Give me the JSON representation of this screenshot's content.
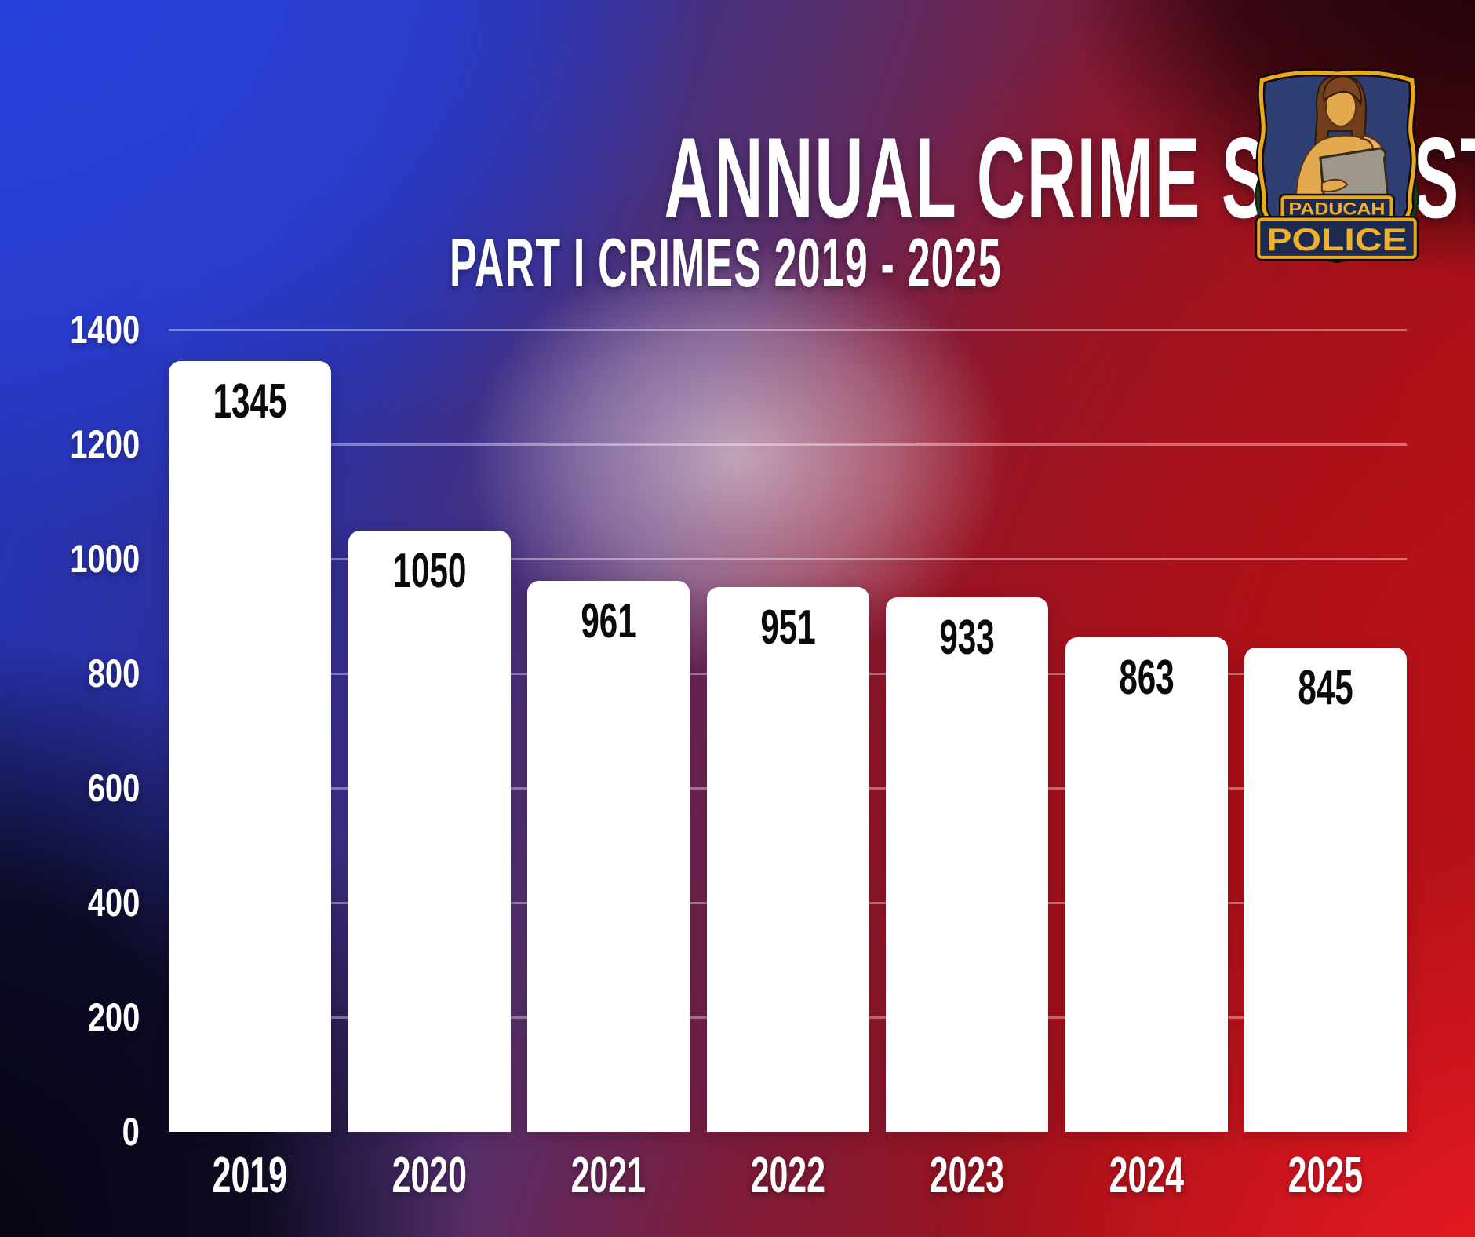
{
  "header": {
    "title": "ANNUAL CRIME STATISTICS",
    "subtitle": "PART I CRIMES 2019 - 2025"
  },
  "logo": {
    "description": "Paducah Police shield badge",
    "line1": "PADUCAH",
    "line2": "POLICE",
    "colors": {
      "gold": "#eca91d",
      "gold_text": "#f2b02a",
      "shield_field": "#2c3e72",
      "banner_field": "#1d2a50",
      "outline": "#0f0b04",
      "skin": "#e3a94f",
      "hair": "#6f3e1c",
      "tablet": "#a0978b",
      "leaves": "#1a3f1b"
    }
  },
  "chart_data": {
    "type": "bar",
    "title": "ANNUAL CRIME STATISTICS",
    "subtitle": "PART I CRIMES 2019 - 2025",
    "categories": [
      "2019",
      "2020",
      "2021",
      "2022",
      "2023",
      "2024",
      "2025"
    ],
    "values": [
      1345,
      1050,
      961,
      951,
      933,
      863,
      845
    ],
    "xlabel": "",
    "ylabel": "",
    "ylim": [
      0,
      1400
    ],
    "y_ticks": [
      0,
      200,
      400,
      600,
      800,
      1000,
      1200,
      1400
    ],
    "grid": true,
    "legend": false,
    "bar_color": "#ffffff",
    "value_label_color": "#0a0a0a",
    "tick_label_color": "#ffffff",
    "gridline_color": "rgba(255,255,255,0.40)"
  },
  "theme": {
    "accent_blue": "#2942de",
    "accent_red": "#c2141d",
    "glow": "#f6e8f4"
  }
}
